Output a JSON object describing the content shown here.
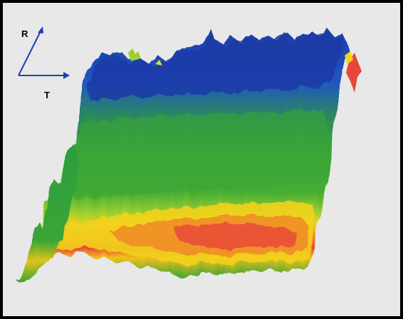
{
  "axes": {
    "r_label": "R",
    "t_label": "T",
    "color": "#1f3fb4"
  },
  "surface": {
    "colors": {
      "blue": "#1f4fbf",
      "deep_blue": "#1d3aa6",
      "green": "#3aa536",
      "light_green": "#6ec23a",
      "yellow": "#f2d21c",
      "orange": "#f08a2a",
      "red": "#e8463a",
      "background": "#e8e8e8"
    }
  }
}
